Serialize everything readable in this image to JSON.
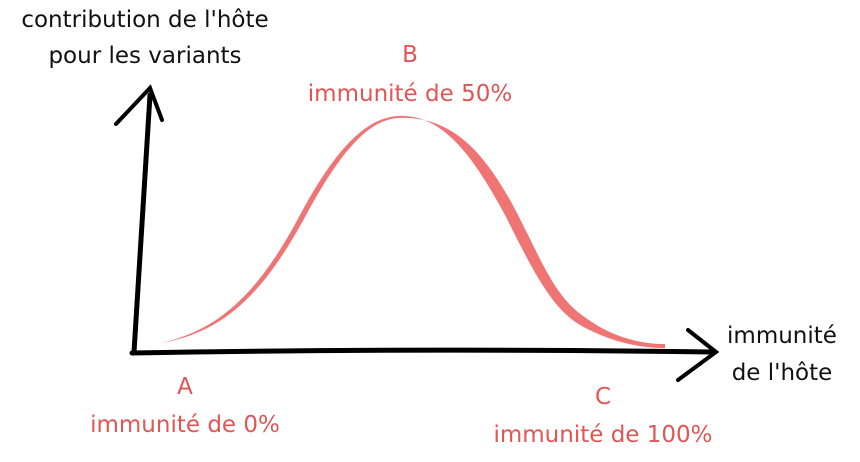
{
  "axes": {
    "y_label": [
      "contribution de l'hôte",
      "pour les variants"
    ],
    "x_label": [
      "immunité",
      "de l'hôte"
    ]
  },
  "points": [
    {
      "letter": "A",
      "label": "immunité de 0%"
    },
    {
      "letter": "B",
      "label": "immunité de 50%"
    },
    {
      "letter": "C",
      "label": "immunité de 100%"
    }
  ]
}
